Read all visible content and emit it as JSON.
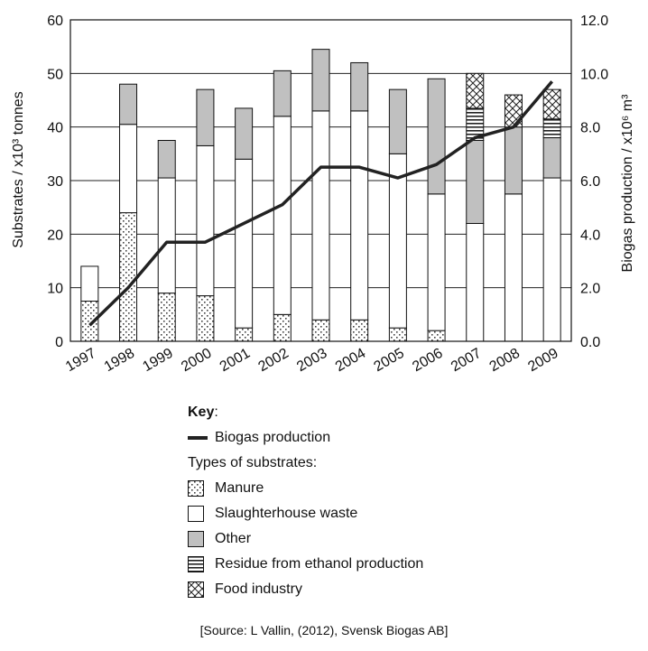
{
  "chart_data": {
    "type": "bar",
    "subtype": "stacked-bar-with-line",
    "categories": [
      "1997",
      "1998",
      "1999",
      "2000",
      "2001",
      "2002",
      "2003",
      "2004",
      "2005",
      "2006",
      "2007",
      "2008",
      "2009"
    ],
    "ylabel": "Substrates / x10³ tonnes",
    "ylim": [
      0,
      60
    ],
    "yticks": [
      "0",
      "10",
      "20",
      "30",
      "40",
      "50",
      "60"
    ],
    "y2label": "Biogas production / x10⁶ m³",
    "y2lim": [
      0,
      12
    ],
    "y2ticks": [
      "0.0",
      "2.0",
      "4.0",
      "6.0",
      "8.0",
      "10.0",
      "12.0"
    ],
    "grid": true,
    "series": [
      {
        "name": "Manure",
        "pattern": "dots",
        "values": [
          7.5,
          24,
          9,
          8.5,
          2.5,
          5,
          4,
          4,
          2.5,
          2,
          0,
          0,
          0
        ]
      },
      {
        "name": "Slaughterhouse waste",
        "pattern": "white",
        "values": [
          6.5,
          16.5,
          21.5,
          28,
          31.5,
          37,
          39,
          39,
          32.5,
          25.5,
          22,
          27.5,
          30.5
        ]
      },
      {
        "name": "Other",
        "pattern": "gray",
        "values": [
          0,
          7.5,
          7,
          10.5,
          9.5,
          8.5,
          11.5,
          9,
          12,
          21.5,
          15.5,
          12.5,
          7.5
        ]
      },
      {
        "name": "Residue from ethanol production",
        "pattern": "hlines",
        "values": [
          0,
          0,
          0,
          0,
          0,
          0,
          0,
          0,
          0,
          0,
          6,
          0,
          3.5
        ]
      },
      {
        "name": "Food industry",
        "pattern": "cross",
        "values": [
          0,
          0,
          0,
          0,
          0,
          0,
          0,
          0,
          0,
          0,
          6.5,
          6,
          5.5
        ]
      }
    ],
    "line": {
      "name": "Biogas production",
      "axis": "right",
      "values": [
        0.6,
        2.0,
        3.7,
        3.7,
        4.4,
        5.1,
        6.5,
        6.5,
        6.1,
        6.6,
        7.6,
        8.0,
        9.7
      ]
    }
  },
  "key": {
    "title": "Key",
    "line_label": "Biogas production",
    "types_label": "Types of substrates:",
    "items": [
      "Manure",
      "Slaughterhouse waste",
      "Other",
      "Residue from ethanol production",
      "Food industry"
    ]
  },
  "source": "[Source: L Vallin, (2012), Svensk Biogas AB]"
}
